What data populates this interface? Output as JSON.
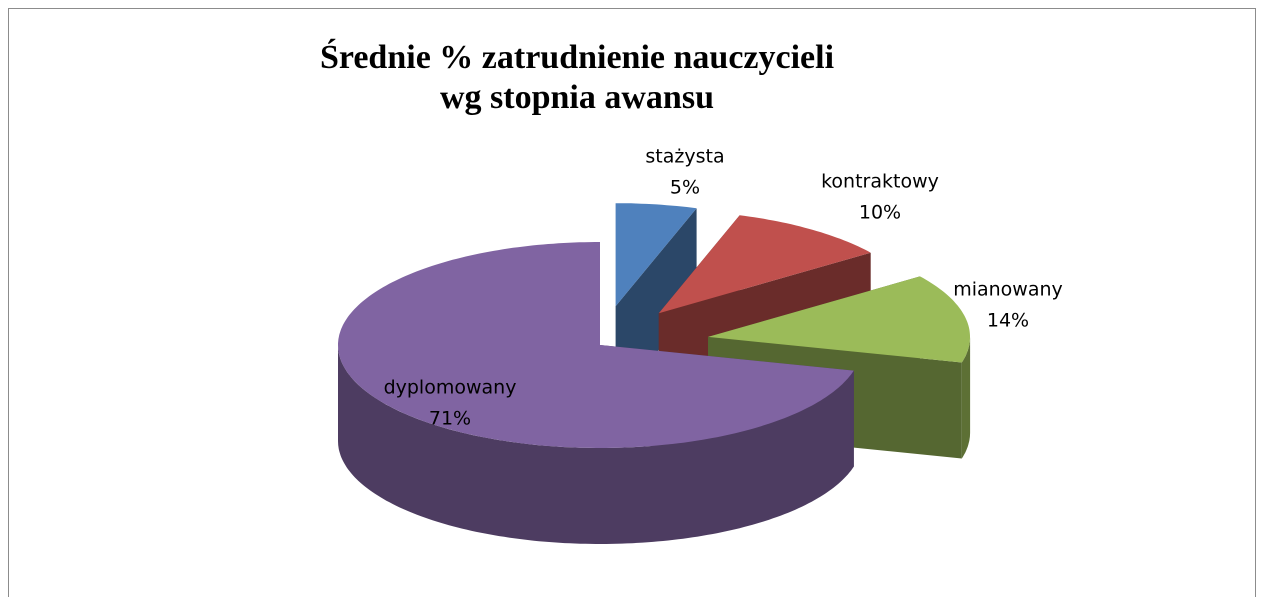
{
  "chart_data": {
    "type": "pie",
    "title": "Średnie % zatrudnienie nauczycieli wg stopnia awansu",
    "categories": [
      "stażysta",
      "kontraktowy",
      "mianowany",
      "dyplomowany"
    ],
    "values": [
      5,
      10,
      14,
      71
    ],
    "value_labels": [
      "5%",
      "10%",
      "14%",
      "71%"
    ],
    "colors": [
      "#4f81bd",
      "#c0504d",
      "#9bbb59",
      "#8064a2"
    ]
  }
}
